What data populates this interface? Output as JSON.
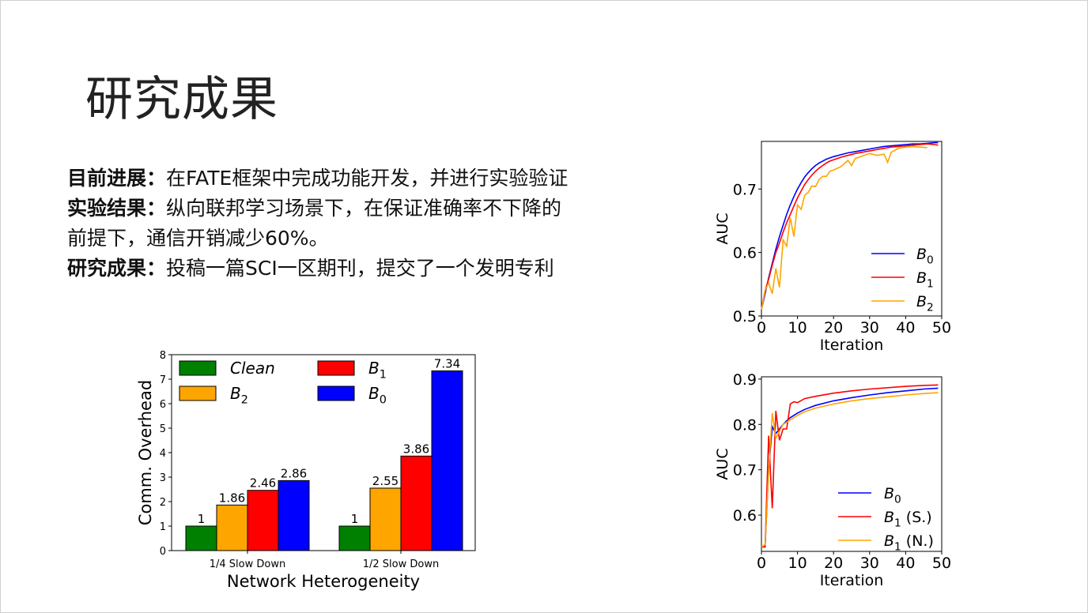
{
  "title": "研究成果",
  "bullets": [
    {
      "label": "目前进展：",
      "text": "在FATE框架中完成功能开发，并进行实验验证"
    },
    {
      "label": "实验结果：",
      "text": "纵向联邦学习场景下，在保证准确率不下降的"
    },
    {
      "label": "",
      "text": "前提下，通信开销减少60%。"
    },
    {
      "label": "研究成果：",
      "text": "投稿一篇SCI一区期刊，提交了一个发明专利"
    }
  ],
  "colors": {
    "clean": "#008000",
    "b2": "#FFA500",
    "b1": "#FF0000",
    "b0": "#0000FF"
  },
  "chart_data": [
    {
      "type": "bar",
      "categories": [
        "1/4 Slow Down",
        "1/2 Slow Down"
      ],
      "xlabel": "Network Heterogeneity",
      "ylabel": "Comm. Overhead",
      "ylim": [
        0,
        8
      ],
      "yticks": [
        "0",
        "1",
        "2",
        "3",
        "4",
        "5",
        "6",
        "7",
        "8"
      ],
      "legend": "top-left, 2 columns",
      "grid": false,
      "series": [
        {
          "name": "Clean",
          "values": [
            1,
            1
          ],
          "labels": [
            "1",
            "1"
          ],
          "color": "#008000"
        },
        {
          "name": "B2",
          "values": [
            1.86,
            2.55
          ],
          "labels": [
            "1.86",
            "2.55"
          ],
          "color": "#FFA500"
        },
        {
          "name": "B1",
          "values": [
            2.46,
            3.86
          ],
          "labels": [
            "2.46",
            "3.86"
          ],
          "color": "#FF0000"
        },
        {
          "name": "B0",
          "values": [
            2.86,
            7.34
          ],
          "labels": [
            "2.86",
            "7.34"
          ],
          "color": "#0000FF"
        }
      ]
    },
    {
      "type": "line",
      "xlabel": "Iteration",
      "ylabel": "AUC",
      "xlim": [
        0,
        50
      ],
      "ylim": [
        0.5,
        0.775
      ],
      "xticks": [
        "0",
        "10",
        "20",
        "30",
        "40",
        "50"
      ],
      "yticks": [
        "0.5",
        "0.6",
        "0.7"
      ],
      "legend": "bottom-right",
      "grid": false,
      "series": [
        {
          "name": "B0",
          "color": "#0000FF",
          "x": [
            0,
            1,
            2,
            3,
            4,
            5,
            6,
            7,
            8,
            9,
            10,
            11,
            12,
            13,
            14,
            15,
            16,
            17,
            18,
            19,
            20,
            22,
            24,
            26,
            28,
            30,
            32,
            34,
            36,
            38,
            40,
            42,
            44,
            46,
            48,
            49
          ],
          "y": [
            0.51,
            0.535,
            0.56,
            0.583,
            0.605,
            0.625,
            0.643,
            0.66,
            0.675,
            0.688,
            0.7,
            0.71,
            0.719,
            0.726,
            0.732,
            0.737,
            0.741,
            0.744,
            0.747,
            0.749,
            0.751,
            0.754,
            0.757,
            0.759,
            0.761,
            0.763,
            0.765,
            0.767,
            0.768,
            0.769,
            0.77,
            0.771,
            0.771,
            0.772,
            0.773,
            0.773
          ]
        },
        {
          "name": "B1",
          "color": "#FF0000",
          "x": [
            0,
            1,
            2,
            3,
            4,
            5,
            6,
            7,
            8,
            9,
            10,
            11,
            12,
            13,
            14,
            15,
            16,
            17,
            18,
            19,
            20,
            22,
            24,
            26,
            28,
            30,
            32,
            34,
            36,
            38,
            40,
            42,
            44,
            46,
            48,
            49
          ],
          "y": [
            0.51,
            0.54,
            0.558,
            0.58,
            0.6,
            0.615,
            0.632,
            0.647,
            0.66,
            0.673,
            0.686,
            0.697,
            0.707,
            0.715,
            0.722,
            0.728,
            0.733,
            0.737,
            0.741,
            0.744,
            0.746,
            0.75,
            0.753,
            0.756,
            0.758,
            0.76,
            0.762,
            0.764,
            0.766,
            0.767,
            0.768,
            0.769,
            0.77,
            0.771,
            0.77,
            0.769
          ]
        },
        {
          "name": "B2",
          "color": "#FFA500",
          "x": [
            0,
            1,
            2,
            3,
            4,
            5,
            6,
            7,
            8,
            9,
            10,
            11,
            12,
            13,
            14,
            15,
            16,
            17,
            18,
            19,
            20,
            22,
            24,
            25,
            26,
            28,
            30,
            32,
            34,
            35,
            36,
            38,
            40,
            42,
            44,
            46
          ],
          "y": [
            0.51,
            0.54,
            0.552,
            0.535,
            0.575,
            0.545,
            0.62,
            0.61,
            0.655,
            0.625,
            0.675,
            0.668,
            0.69,
            0.695,
            0.705,
            0.704,
            0.715,
            0.72,
            0.72,
            0.728,
            0.73,
            0.735,
            0.745,
            0.737,
            0.748,
            0.752,
            0.756,
            0.753,
            0.755,
            0.742,
            0.758,
            0.764,
            0.766,
            0.767,
            0.766,
            0.765
          ]
        }
      ]
    },
    {
      "type": "line",
      "xlabel": "Iteration",
      "ylabel": "AUC",
      "xlim": [
        0,
        50
      ],
      "ylim": [
        0.52,
        0.905
      ],
      "xticks": [
        "0",
        "10",
        "20",
        "30",
        "40",
        "50"
      ],
      "yticks": [
        "0.6",
        "0.7",
        "0.8",
        "0.9"
      ],
      "legend": "bottom-right",
      "grid": false,
      "series": [
        {
          "name": "B0",
          "color": "#0000FF",
          "x": [
            0,
            1,
            2,
            3,
            4,
            5,
            6,
            7,
            8,
            10,
            12,
            15,
            20,
            25,
            30,
            35,
            40,
            45,
            49
          ],
          "y": [
            0.53,
            0.53,
            0.7,
            0.795,
            0.78,
            0.79,
            0.8,
            0.808,
            0.815,
            0.825,
            0.833,
            0.842,
            0.852,
            0.859,
            0.865,
            0.87,
            0.874,
            0.878,
            0.88
          ]
        },
        {
          "name": "B1 (S.)",
          "color": "#FF0000",
          "x": [
            0,
            1,
            2,
            3,
            4,
            5,
            6,
            7,
            8,
            9,
            10,
            12,
            15,
            20,
            25,
            30,
            35,
            40,
            45,
            49
          ],
          "y": [
            0.53,
            0.53,
            0.775,
            0.615,
            0.83,
            0.765,
            0.79,
            0.79,
            0.845,
            0.85,
            0.848,
            0.857,
            0.862,
            0.869,
            0.874,
            0.878,
            0.881,
            0.884,
            0.886,
            0.887
          ]
        },
        {
          "name": "B1 (N.)",
          "color": "#FFA500",
          "x": [
            0,
            1,
            2,
            3,
            4,
            5,
            6,
            7,
            8,
            10,
            12,
            15,
            20,
            25,
            30,
            35,
            40,
            45,
            49
          ],
          "y": [
            0.53,
            0.535,
            0.695,
            0.825,
            0.77,
            0.785,
            0.8,
            0.805,
            0.81,
            0.82,
            0.828,
            0.836,
            0.845,
            0.852,
            0.857,
            0.861,
            0.865,
            0.868,
            0.87
          ]
        }
      ]
    }
  ]
}
